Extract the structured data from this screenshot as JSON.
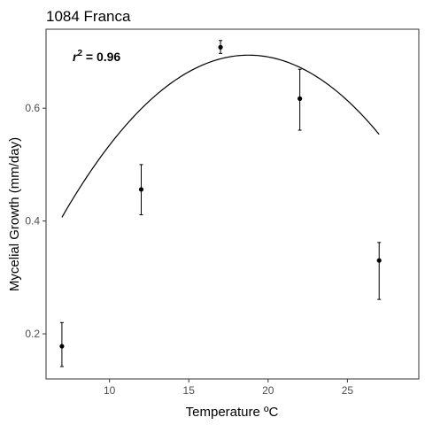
{
  "chart_data": {
    "type": "scatter",
    "title": "1084 Franca",
    "xlabel": "Temperature ºC",
    "ylabel": "Mycelial Growth (mm/day)",
    "xlim": [
      6,
      29.5
    ],
    "ylim": [
      0.12,
      0.74
    ],
    "xticks": [
      10,
      15,
      20,
      25
    ],
    "yticks": [
      0.2,
      0.4,
      0.6
    ],
    "ytick_labels": [
      "0.2",
      "0.4",
      "0.6"
    ],
    "grid": false,
    "annotation": {
      "r_symbol": "r",
      "r_exponent": "2",
      "value_text": " = 0.96"
    },
    "points": [
      {
        "x": 7,
        "y": 0.178,
        "err_low": 0.142,
        "err_high": 0.22
      },
      {
        "x": 12,
        "y": 0.456,
        "err_low": 0.411,
        "err_high": 0.5
      },
      {
        "x": 17,
        "y": 0.708,
        "err_low": 0.697,
        "err_high": 0.72
      },
      {
        "x": 22,
        "y": 0.617,
        "err_low": 0.561,
        "err_high": 0.669
      },
      {
        "x": 27,
        "y": 0.33,
        "err_low": 0.261,
        "err_high": 0.362
      }
    ],
    "fit": {
      "type": "quadratic",
      "a": -0.002075,
      "b": 0.0779,
      "c": -0.0371,
      "x_range": [
        7,
        27
      ]
    },
    "colors": {
      "points": "#000000",
      "fit_line": "#000000",
      "panel_border": "#333333",
      "tick_label": "#4d4d4d"
    }
  }
}
